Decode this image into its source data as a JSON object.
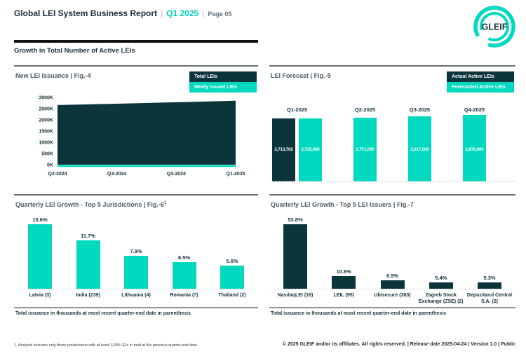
{
  "header": {
    "title": "Global LEI System Business Report",
    "sep": "|",
    "quarter": "Q1 2025",
    "page": "Page 05",
    "logo_text": "GLEIF"
  },
  "section": {
    "title": "Growth in Total Number of Active LEIs"
  },
  "panels": {
    "fig4": {
      "title": "New LEI Issuance",
      "sep": "|",
      "fig": "Fig.-4",
      "legend": [
        {
          "label": "Total LEIs",
          "color": "#0b353b"
        },
        {
          "label": "Newly Issued LEIs",
          "color": "#00d9c0"
        }
      ]
    },
    "fig5": {
      "title": "LEI Forecast",
      "sep": "|",
      "fig": "Fig.-5",
      "legend": [
        {
          "label": "Actual Active LEIs",
          "color": "#0b353b"
        },
        {
          "label": "Forecasted Active LEIs",
          "color": "#00d9c0"
        }
      ]
    },
    "fig6": {
      "title": "Quarterly LEI Growth - Top 5 Jurisdictions",
      "sep": "|",
      "fig": "Fig.-6",
      "fig_sup": "1",
      "caption": "Total issuance in thousands at most recent quarter-end date in parenthesis"
    },
    "fig7": {
      "title": "Quarterly LEI Growth - Top 5 LEI Issuers",
      "sep": "|",
      "fig": "Fig.-7",
      "caption": "Total issuance in thousands at most recent quarter-end date in parenthesis"
    }
  },
  "chart_data": [
    {
      "type": "area",
      "title": "New LEI Issuance | Fig.-4",
      "x": [
        "Q2-2024",
        "Q3-2024",
        "Q4-2024",
        "Q1-2025"
      ],
      "series": [
        {
          "name": "Total LEIs",
          "color": "#0b353b",
          "values": [
            2660000,
            2720000,
            2785000,
            2850000
          ]
        },
        {
          "name": "Newly Issued LEIs",
          "color": "#00d9c0",
          "values": [
            85000,
            87000,
            89000,
            91000
          ]
        }
      ],
      "y_ticks": [
        "3000K",
        "2500K",
        "2000K",
        "1500K",
        "1000K",
        "500K",
        "0K"
      ],
      "ylim": [
        0,
        3000000
      ],
      "legend_position": "top-right",
      "grid": false
    },
    {
      "type": "bar",
      "title": "LEI Forecast | Fig.-5",
      "categories": [
        "Q1-2025",
        "Q2-2025",
        "Q3-2025",
        "Q4-2025"
      ],
      "series": [
        {
          "name": "Actual Active LEIs",
          "color": "#0b353b",
          "values": [
            2713702,
            null,
            null,
            null
          ],
          "labels": [
            "2,713,702",
            "",
            "",
            ""
          ]
        },
        {
          "name": "Forecasted Active LEIs",
          "color": "#00d9c0",
          "values": [
            2715000,
            2771000,
            2817000,
            2878000
          ],
          "labels": [
            "2,715,000",
            "2,771,000",
            "2,817,000",
            "2,878,000"
          ]
        }
      ],
      "legend_position": "top-right",
      "grid": false
    },
    {
      "type": "bar",
      "title": "Quarterly LEI Growth - Top 5 Jurisdictions | Fig.-6",
      "categories": [
        "Latvia (3)",
        "India (239)",
        "Lithuania (4)",
        "Romania (7)",
        "Thailand (2)"
      ],
      "values": [
        15.6,
        11.7,
        7.9,
        6.5,
        5.6
      ],
      "labels": [
        "15.6%",
        "11.7%",
        "7.9%",
        "6.5%",
        "5.6%"
      ],
      "bar_color": "#00d9c0",
      "grid": false
    },
    {
      "type": "bar",
      "title": "Quarterly LEI Growth - Top 5 LEI Issuers | Fig.-7",
      "categories": [
        "NasdaqLEI (16)",
        "LEIL (95)",
        "Ubisecure (383)",
        "Zagreb Stock Exchange (ZSE) (2)",
        "Depozitarul Central S.A. (2)"
      ],
      "values": [
        53.8,
        10.8,
        6.9,
        5.4,
        5.3
      ],
      "labels": [
        "53.8%",
        "10.8%",
        "6.9%",
        "5.4%",
        "5.3%"
      ],
      "bar_color": "#0b353b",
      "grid": false
    }
  ],
  "footer": {
    "footnote": "1. Analysis includes only those jurisdictions with at least 1,000 LEIs in total at the previous quarter-end date.",
    "copyright": "© 2025 GLEIF and/or its affiliates. All rights reserved. | Release date 2025-04-24 | Version 1.0 | Public"
  },
  "colors": {
    "teal": "#00d9c0",
    "dark": "#0b353b",
    "title_navy": "#16303c",
    "gray_text": "#5f6e7a"
  }
}
